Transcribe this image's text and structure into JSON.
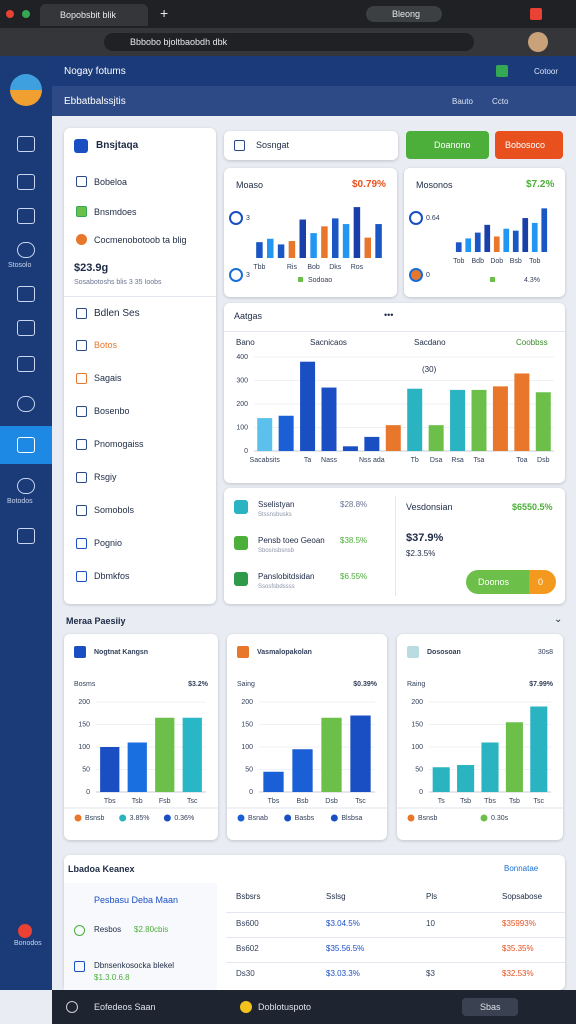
{
  "browser": {
    "tab": "Bopobsbit blik",
    "profile": "Bleong",
    "url": "Bbbobo bjoltbaobdh dbk"
  },
  "header": {
    "title": "Nogay fotums",
    "action": "Cotoor",
    "subtitle": "Ebbatbalssjtis",
    "tools": [
      "Bauto",
      "Ccto"
    ]
  },
  "sidebar": {
    "labels": [
      "Stosolo",
      "Botodos",
      "Bonodos"
    ]
  },
  "left_panel": {
    "title": "Bnsjtaqa",
    "items": [
      "Bobeloa",
      "Bnsmdoes",
      "Cocmenobotoob ta blig"
    ],
    "amount": "$23.9g",
    "note": "Sosabotoshs blis 3 35 Ioobs",
    "section": "Bdlen Ses",
    "menu": [
      "Botos",
      "Sagais",
      "Bosenbo",
      "Pnomogaiss",
      "Rsgiy",
      "Somobols",
      "Pognio",
      "Dbmkfos"
    ]
  },
  "toolbar": {
    "search": "Sosngat",
    "buttons": [
      "Doanono",
      "Bobosoco"
    ]
  },
  "list_card": {
    "rows": [
      {
        "title": "Sselistyan",
        "sub": "Stssnsbusks",
        "value": "$28.8%"
      },
      {
        "title": "Pensb toeo Geoan",
        "sub": "Sbosnsbsnsb",
        "value": "$38.5%"
      },
      {
        "title": "Panslobitdsidan",
        "sub": "Ssosfsbdssss",
        "value": "$6.55%"
      }
    ],
    "side_title": "Vesdonsian",
    "side_value": "$6550.5%",
    "amount": "$37.9%",
    "sub": "$2.3.5%",
    "pill": "Doonos",
    "pill_value": "0"
  },
  "section_title": "Meraa Paesiiy",
  "bottom_card": {
    "title": "Lbadoa Keanex",
    "action": "Bonnatae",
    "panel_title": "Pesbasu Deba Maan",
    "items": [
      {
        "title": "Resbos",
        "value": "$2.80cbis"
      },
      {
        "title": "Dbnsenkosocka blekel",
        "value": "$1.3.0.6.8"
      }
    ],
    "table": {
      "headers": [
        "Bsbsrs",
        "Sslsg",
        "Pls",
        "Sopsabose"
      ],
      "rows": [
        [
          "Bs600",
          "$3.04.5%",
          "10",
          "$35993%"
        ],
        [
          "Bs602",
          "$35.56.5%",
          "",
          "$35.35%"
        ],
        [
          "Ds30",
          "$3.03.3%",
          "$3",
          "$32.53%"
        ]
      ]
    }
  },
  "status_bar": [
    "Eofedeos Saan",
    "Doblotuspoto",
    "Sbas"
  ],
  "chart_data": [
    {
      "type": "bar",
      "title": "Moaso",
      "figure": "$0.79%",
      "tags": [
        "3",
        "3"
      ],
      "legend": "Sodoao",
      "categories": [
        "Tbb",
        null,
        null,
        "Ris",
        null,
        "Bob",
        null,
        "Dks",
        null,
        "Ros",
        null,
        null
      ],
      "values": [
        14,
        17,
        12,
        15,
        34,
        22,
        28,
        35,
        30,
        45,
        18,
        30
      ],
      "colors": [
        "#1a56c4",
        "#2196f3",
        "#1a56c4",
        "#e8762b",
        "#1a3fa8",
        "#2196f3",
        "#e8762b",
        "#1a56c4",
        "#2196f3",
        "#1a3fa8",
        "#e8762b",
        "#1a56c4"
      ]
    },
    {
      "type": "bar",
      "title": "Mosonos",
      "figure": "$7.2%",
      "tags": [
        "0.64",
        "0"
      ],
      "legend": "4.3%",
      "categories": [
        "Tob",
        null,
        "Bdb",
        null,
        "Dob",
        null,
        "Bsb",
        null,
        "Tob",
        null
      ],
      "values": [
        10,
        14,
        20,
        28,
        16,
        24,
        22,
        35,
        30,
        45
      ],
      "colors": [
        "#1a56c4",
        "#2196f3",
        "#1a56c4",
        "#1a3fa8",
        "#e8762b",
        "#2196f3",
        "#1a56c4",
        "#1a3fa8",
        "#2196f3",
        "#1a56c4"
      ]
    },
    {
      "type": "bar",
      "title": "Aatgas",
      "menu": "•••",
      "columns": [
        "Bano",
        "Sacnicaos",
        "Sacdano",
        "Coobbss"
      ],
      "annotation": "(30)",
      "ylim": [
        0,
        400
      ],
      "yticks": [
        0,
        100,
        200,
        300,
        400
      ],
      "categories": [
        "Sacabsits",
        null,
        "Ta",
        "Nass",
        null,
        "Nss ada",
        null,
        "Tb",
        "Dsa",
        "Rsa",
        "Tsa",
        null,
        "Toa",
        "Dsb"
      ],
      "values": [
        140,
        150,
        380,
        270,
        20,
        60,
        110,
        265,
        110,
        260,
        260,
        275,
        330,
        250
      ],
      "colors": [
        "#5bc0eb",
        "#1a5fd6",
        "#1a4fc4",
        "#1a4fc4",
        "#1a4fc4",
        "#1a4fc4",
        "#e8762b",
        "#2ab3c0",
        "#6cc04a",
        "#2ab3c0",
        "#6cc04a",
        "#e8762b",
        "#e8762b",
        "#6cc04a"
      ]
    },
    {
      "type": "bar",
      "title": "Nogtnat Kangsn",
      "label": "Bosms",
      "figure": "$3.2%",
      "footer": [
        "Bsnsb",
        "3.85%",
        "0.36%"
      ],
      "ylim": [
        0,
        200
      ],
      "yticks": [
        0,
        50,
        100,
        150,
        200
      ],
      "categories": [
        "Tbs",
        "Tsb",
        "Fsb",
        "Tsc"
      ],
      "values": [
        100,
        110,
        165,
        165
      ],
      "colors": [
        "#1a4fc4",
        "#1a6fe0",
        "#6cc04a",
        "#29b6c6"
      ]
    },
    {
      "type": "bar",
      "title": "Vasmalopakolan",
      "label": "Saing",
      "figure": "$0.39%",
      "footer": [
        "Bsnab",
        "Basbs",
        "Blsbsa"
      ],
      "ylim": [
        0,
        200
      ],
      "yticks": [
        0,
        50,
        100,
        150,
        200
      ],
      "categories": [
        "Tbs",
        "Bsb",
        "Dsb",
        "Tsc"
      ],
      "values": [
        45,
        95,
        165,
        170
      ],
      "colors": [
        "#1a5fd6",
        "#1a5fd6",
        "#6cc04a",
        "#1a4fc4"
      ]
    },
    {
      "type": "bar",
      "title": "Dososoan",
      "badge": "30s8",
      "label": "Raing",
      "figure": "$7.99%",
      "footer": [
        "Bsnsb",
        "0.30s"
      ],
      "ylim": [
        0,
        200
      ],
      "yticks": [
        0,
        50,
        100,
        150,
        200
      ],
      "categories": [
        "Ts",
        "Tsb",
        "Tbs",
        "Tsb",
        "Tsc"
      ],
      "values": [
        55,
        60,
        110,
        155,
        190
      ],
      "colors": [
        "#2ab3c0",
        "#2ab3c0",
        "#2ab3c0",
        "#6cc04a",
        "#2ab3c0"
      ]
    }
  ]
}
